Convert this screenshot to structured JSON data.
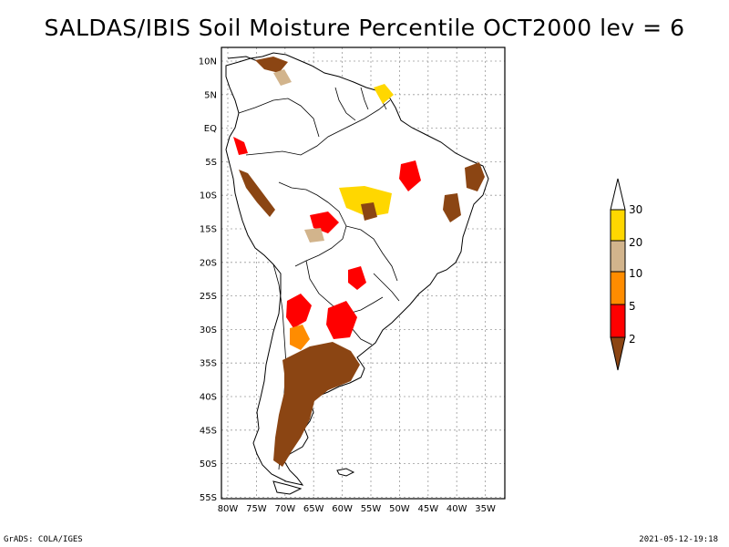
{
  "title": "SALDAS/IBIS Soil Moisture Percentile OCT2000 lev = 6",
  "lat_labels": [
    "10N",
    "5N",
    "EQ",
    "5S",
    "10S",
    "15S",
    "20S",
    "25S",
    "30S",
    "35S",
    "40S",
    "45S",
    "50S",
    "55S"
  ],
  "lon_labels": [
    "80W",
    "75W",
    "70W",
    "65W",
    "60W",
    "55W",
    "50W",
    "45W",
    "40W",
    "35W"
  ],
  "legend": {
    "labels": [
      "30",
      "20",
      "10",
      "5",
      "2"
    ],
    "colors": {
      "below_2": "#8b4513",
      "2_5": "#ff0000",
      "5_10": "#ff8c00",
      "10_20": "#d2b48c",
      "20_30": "#ffd700",
      "above_30": "#ffffff"
    }
  },
  "footer": {
    "left": "GrADS: COLA/IGES",
    "right": "2021-05-12-19:18"
  }
}
